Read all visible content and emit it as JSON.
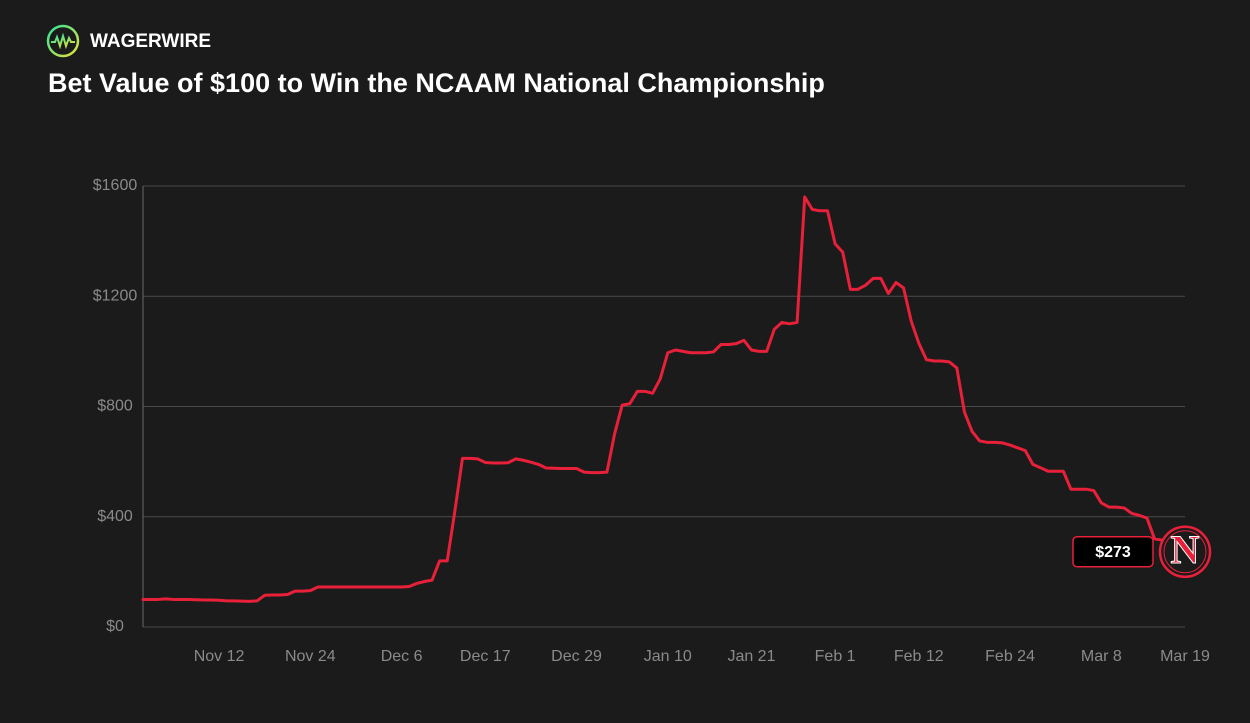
{
  "brand": "WAGERWIRE",
  "chart_data": {
    "type": "line",
    "title": "Bet Value of $100 to Win the NCAAM National Championship",
    "categories": [
      null,
      null,
      null,
      null,
      null,
      null,
      null,
      null,
      null,
      null,
      "Nov 12",
      null,
      null,
      null,
      null,
      null,
      null,
      null,
      null,
      null,
      null,
      null,
      "Nov 24",
      null,
      null,
      null,
      null,
      null,
      null,
      null,
      null,
      null,
      null,
      null,
      "Dec 6",
      null,
      null,
      null,
      null,
      null,
      null,
      null,
      null,
      null,
      null,
      "Dec 17",
      null,
      null,
      null,
      null,
      null,
      null,
      null,
      null,
      null,
      null,
      null,
      "Dec 29",
      null,
      null,
      null,
      null,
      null,
      null,
      null,
      null,
      null,
      null,
      null,
      "Jan 10",
      null,
      null,
      null,
      null,
      null,
      null,
      null,
      null,
      null,
      null,
      "Jan 21",
      null,
      null,
      null,
      null,
      null,
      null,
      null,
      null,
      null,
      null,
      "Feb 1",
      null,
      null,
      null,
      null,
      null,
      null,
      null,
      null,
      null,
      null,
      "Feb 12",
      null,
      null,
      null,
      null,
      null,
      null,
      null,
      null,
      null,
      null,
      null,
      "Feb 24",
      null,
      null,
      null,
      null,
      null,
      null,
      null,
      null,
      null,
      null,
      null,
      "Mar 8",
      null,
      null,
      null,
      null,
      null,
      null,
      null,
      null,
      null,
      null,
      "Mar 19"
    ],
    "series": [
      {
        "color": "#e8203a",
        "values": [
          100,
          100,
          100,
          102,
          100,
          100,
          100,
          99,
          98,
          98,
          97,
          95,
          95,
          94,
          93,
          95,
          115,
          116,
          116,
          118,
          130,
          130,
          132,
          145,
          145,
          145,
          145,
          145,
          145,
          145,
          145,
          145,
          145,
          145,
          145,
          147,
          158,
          165,
          170,
          240,
          240,
          420,
          612,
          612,
          610,
          597,
          595,
          595,
          596,
          610,
          605,
          598,
          590,
          577,
          576,
          575,
          575,
          575,
          562,
          560,
          560,
          562,
          700,
          805,
          810,
          855,
          855,
          848,
          900,
          995,
          1005,
          1000,
          995,
          995,
          995,
          998,
          1025,
          1025,
          1028,
          1040,
          1005,
          1000,
          1000,
          1080,
          1105,
          1100,
          1105,
          1560,
          1515,
          1510,
          1510,
          1390,
          1360,
          1225,
          1225,
          1240,
          1265,
          1265,
          1210,
          1250,
          1230,
          1110,
          1030,
          970,
          965,
          965,
          962,
          940,
          780,
          710,
          675,
          670,
          670,
          668,
          660,
          650,
          640,
          590,
          578,
          565,
          565,
          565,
          500,
          500,
          500,
          495,
          450,
          435,
          435,
          432,
          412,
          405,
          395,
          320,
          315,
          300,
          290,
          273
        ],
        "value_labels": [
          null,
          null,
          null,
          null,
          null,
          null,
          null,
          null,
          null,
          null,
          null,
          null,
          null,
          null,
          null,
          null,
          null,
          null,
          null,
          null,
          null,
          null,
          null,
          null,
          null,
          null,
          null,
          null,
          null,
          null,
          null,
          null,
          null,
          null,
          null,
          null,
          null,
          null,
          null,
          null,
          null,
          null,
          null,
          null,
          null,
          null,
          null,
          null,
          null,
          null,
          null,
          null,
          null,
          null,
          null,
          null,
          null,
          null,
          null,
          null,
          null,
          null,
          null,
          null,
          null,
          null,
          null,
          null,
          null,
          null,
          null,
          null,
          null,
          null,
          null,
          null,
          null,
          null,
          null,
          null,
          null,
          null,
          null,
          null,
          null,
          null,
          null,
          null,
          null,
          null,
          null,
          null,
          null,
          null,
          null,
          null,
          null,
          null,
          null,
          null,
          null,
          null,
          null,
          null,
          null,
          null,
          null,
          null,
          null,
          null,
          null,
          null,
          null,
          null,
          null,
          null,
          null,
          null,
          null,
          null,
          null,
          null,
          null,
          null,
          null,
          null,
          null,
          null,
          null,
          null,
          null,
          null,
          null,
          null,
          null,
          null,
          null,
          "$273"
        ]
      }
    ],
    "marker_text": "N",
    "ylim": [
      0,
      1600
    ],
    "yticks": [
      {
        "value": 0,
        "label": "$0"
      },
      {
        "value": 400,
        "label": "$400"
      },
      {
        "value": 800,
        "label": "$800"
      },
      {
        "value": 1200,
        "label": "$1200"
      },
      {
        "value": 1600,
        "label": "$1600"
      }
    ],
    "grid": true
  }
}
